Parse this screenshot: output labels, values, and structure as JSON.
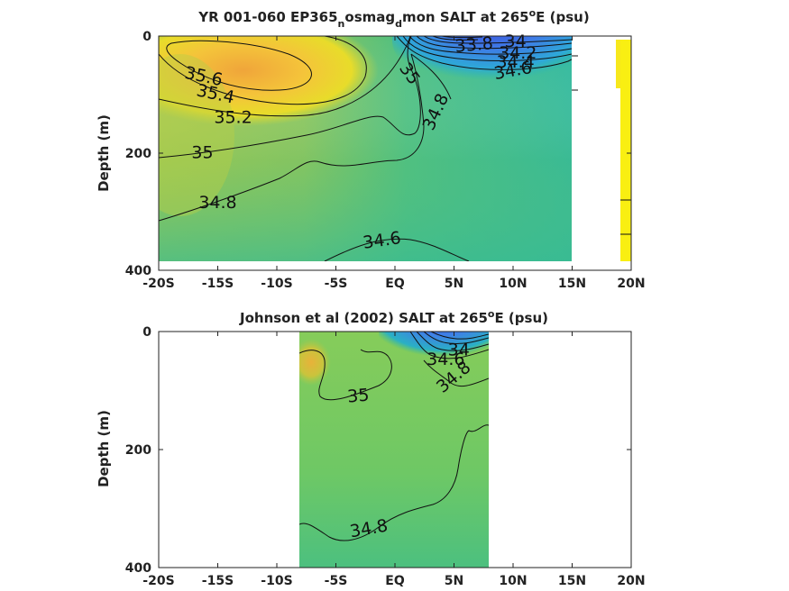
{
  "chart_data": [
    {
      "type": "contour",
      "title": {
        "prefix": "YR 001-060 EP365",
        "sub1": "n",
        "mid": "osmag",
        "sub2": "d",
        "suffix": "mon SALT at 265",
        "sup": "o",
        "tail": "E (psu)"
      },
      "ylabel": "Depth (m)",
      "xlim": [
        -20,
        20
      ],
      "ylim": [
        0,
        400
      ],
      "y_reversed": true,
      "x_ticks": [
        "-20S",
        "-15S",
        "-10S",
        "-5S",
        "EQ",
        "5N",
        "10N",
        "15N",
        "20N"
      ],
      "y_ticks": [
        "0",
        "200",
        "400"
      ],
      "data_extent": {
        "lat": [
          -19.9,
          15.3
        ],
        "depth": [
          0,
          385
        ]
      },
      "colormap": "parula",
      "contour_labels": [
        {
          "text": "35.6",
          "lat": -16.2,
          "depth": 70,
          "rot": 12
        },
        {
          "text": "35.4",
          "lat": -15.2,
          "depth": 100,
          "rot": 12
        },
        {
          "text": "35.2",
          "lat": -13.7,
          "depth": 140,
          "rot": 0
        },
        {
          "text": "35",
          "lat": -16.3,
          "depth": 200,
          "rot": 0
        },
        {
          "text": "34.8",
          "lat": -15.0,
          "depth": 285,
          "rot": 0
        },
        {
          "text": "34.6",
          "lat": -1.1,
          "depth": 350,
          "rot": -8
        },
        {
          "text": "35",
          "lat": 1.2,
          "depth": 65,
          "rot": 55
        },
        {
          "text": "34.8",
          "lat": 3.5,
          "depth": 130,
          "rot": -65
        },
        {
          "text": "33.8",
          "lat": 6.7,
          "depth": 16,
          "rot": -5
        },
        {
          "text": "34",
          "lat": 10.2,
          "depth": 10,
          "rot": 0
        },
        {
          "text": "34.2",
          "lat": 10.4,
          "depth": 30,
          "rot": 0
        },
        {
          "text": "34.4",
          "lat": 10.2,
          "depth": 45,
          "rot": 0
        },
        {
          "text": "34.6",
          "lat": 10.0,
          "depth": 60,
          "rot": -10
        }
      ]
    },
    {
      "type": "contour",
      "title": {
        "prefix": "Johnson et al (2002) SALT at 265",
        "sup": "o",
        "tail": "E (psu)"
      },
      "ylabel": "Depth (m)",
      "xlim": [
        -20,
        20
      ],
      "ylim": [
        0,
        400
      ],
      "y_reversed": true,
      "x_ticks": [
        "-20S",
        "-15S",
        "-10S",
        "-5S",
        "EQ",
        "5N",
        "10N",
        "15N",
        "20N"
      ],
      "y_ticks": [
        "0",
        "200",
        "400"
      ],
      "data_extent": {
        "lat": [
          -8,
          8
        ],
        "depth": [
          0,
          400
        ]
      },
      "colormap": "parula",
      "contour_labels": [
        {
          "text": "35",
          "lat": -3.1,
          "depth": 110,
          "rot": -5
        },
        {
          "text": "34.8",
          "lat": -2.2,
          "depth": 335,
          "rot": -10
        },
        {
          "text": "34",
          "lat": 5.4,
          "depth": 32,
          "rot": 0
        },
        {
          "text": "34.6",
          "lat": 4.3,
          "depth": 48,
          "rot": 0
        },
        {
          "text": "34.8",
          "lat": 5.0,
          "depth": 78,
          "rot": -40
        }
      ]
    }
  ]
}
